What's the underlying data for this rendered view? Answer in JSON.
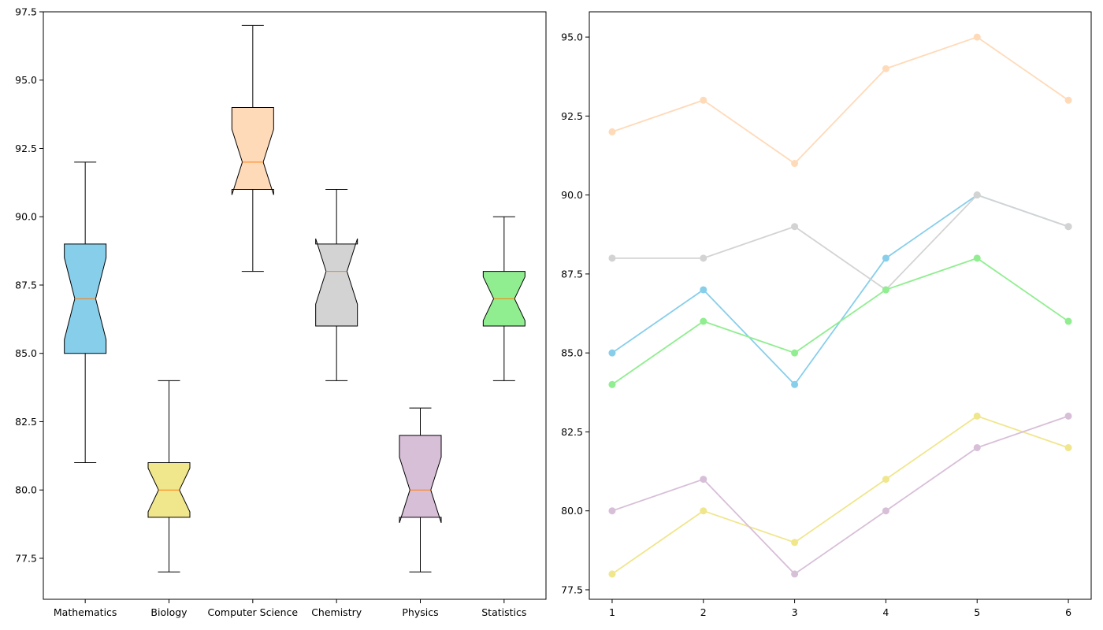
{
  "chart_data": [
    {
      "type": "box",
      "notched": true,
      "categories": [
        "Mathematics",
        "Biology",
        "Computer Science",
        "Chemistry",
        "Physics",
        "Statistics"
      ],
      "boxes": [
        {
          "min": 81,
          "q1": 85,
          "median": 87,
          "q3": 89,
          "max": 92,
          "notch_low": 85.5,
          "notch_high": 88.5,
          "color": "#87ceeb"
        },
        {
          "min": 77,
          "q1": 79,
          "median": 80,
          "q3": 81,
          "max": 84,
          "notch_low": 79.2,
          "notch_high": 80.8,
          "color": "#f0e68c"
        },
        {
          "min": 88,
          "q1": 91,
          "median": 92,
          "q3": 94,
          "max": 97,
          "notch_low": 90.8,
          "notch_high": 93.2,
          "color": "#ffdab9"
        },
        {
          "min": 84,
          "q1": 86,
          "median": 88,
          "q3": 89,
          "max": 91,
          "notch_low": 86.8,
          "notch_high": 89.2,
          "color": "#d3d3d3"
        },
        {
          "min": 77,
          "q1": 79,
          "median": 80,
          "q3": 82,
          "max": 83,
          "notch_low": 78.8,
          "notch_high": 81.2,
          "color": "#d8bfd8"
        },
        {
          "min": 84,
          "q1": 86,
          "median": 87,
          "q3": 88,
          "max": 90,
          "notch_low": 86.2,
          "notch_high": 87.8,
          "color": "#90ee90"
        }
      ],
      "median_color": "#ff7f0e",
      "ylim": [
        76,
        97.5
      ],
      "yticks": [
        "77.5",
        "80.0",
        "82.5",
        "85.0",
        "87.5",
        "90.0",
        "92.5",
        "95.0",
        "97.5"
      ],
      "title": "",
      "xlabel": "",
      "ylabel": ""
    },
    {
      "type": "line",
      "x": [
        1,
        2,
        3,
        4,
        5,
        6
      ],
      "xticks": [
        "1",
        "2",
        "3",
        "4",
        "5",
        "6"
      ],
      "series": [
        {
          "values": [
            85,
            87,
            84,
            88,
            90,
            89
          ],
          "color": "#87ceeb"
        },
        {
          "values": [
            78,
            80,
            79,
            81,
            83,
            82
          ],
          "color": "#f0e68c"
        },
        {
          "values": [
            92,
            93,
            91,
            94,
            95,
            93
          ],
          "color": "#ffdab9"
        },
        {
          "values": [
            88,
            88,
            89,
            87,
            90,
            89
          ],
          "color": "#d3d3d3"
        },
        {
          "values": [
            80,
            81,
            78,
            80,
            82,
            83
          ],
          "color": "#d8bfd8"
        },
        {
          "values": [
            84,
            86,
            85,
            87,
            88,
            86
          ],
          "color": "#90ee90"
        }
      ],
      "ylim": [
        77.2,
        95.8
      ],
      "yticks": [
        "77.5",
        "80.0",
        "82.5",
        "85.0",
        "87.5",
        "90.0",
        "92.5",
        "95.0"
      ],
      "title": "",
      "xlabel": "",
      "ylabel": ""
    }
  ]
}
